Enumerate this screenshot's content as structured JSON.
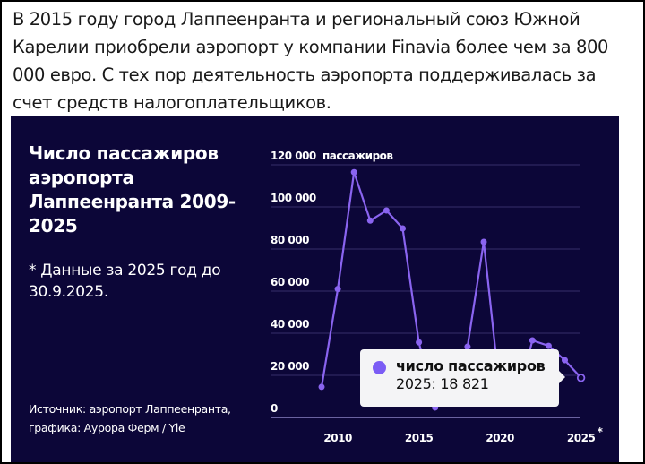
{
  "article": {
    "paragraph": "В 2015 году город Лаппеенранта и региональный союз Южной Карелии приобрели аэропорт у компании Finavia более чем за 800 000 евро. С тех пор деятельность аэропорта поддерживалась за счет средств налогоплательщиков."
  },
  "chart": {
    "title": "Число пассажиров аэропорта Лаппеенранта 2009-2025",
    "note": "* Данные за 2025 год до 30.9.2025.",
    "source_line1": "Источник: аэропорт Лаппеенранта,",
    "source_line2": "графика: Аурора Ферм / Yle",
    "y_unit_label": "пассажиров",
    "x_last_label_marker": "*",
    "tooltip": {
      "series": "число пассажиров",
      "value": "2025: 18 821"
    },
    "colors": {
      "background": "#0c0638",
      "line": "#8a64f0",
      "grid": "#2e2760",
      "axis": "#6a62a0",
      "text": "#ffffff",
      "tooltip_bg": "#f4f4f6"
    }
  },
  "chart_data": {
    "type": "line",
    "title": "Число пассажиров аэропорта Лаппеенранта 2009-2025",
    "subtitle": "* Данные за 2025 год до 30.9.2025.",
    "xlabel": "",
    "ylabel": "пассажиров",
    "x": [
      2009,
      2010,
      2011,
      2012,
      2013,
      2014,
      2015,
      2016,
      2017,
      2018,
      2019,
      2020,
      2021,
      2022,
      2023,
      2024,
      2025
    ],
    "series": [
      {
        "name": "число пассажиров",
        "values": [
          14500,
          61000,
          116500,
          93500,
          98300,
          89800,
          35700,
          4700,
          null,
          33600,
          83400,
          null,
          null,
          36600,
          34000,
          27200,
          18821
        ]
      }
    ],
    "ylim": [
      0,
      120000
    ],
    "yticks": [
      "0",
      "20 000",
      "40 000",
      "60 000",
      "80 000",
      "100 000",
      "120 000"
    ],
    "xticks": [
      "2010",
      "2015",
      "2020",
      "2025"
    ],
    "grid": true,
    "legend": "tooltip",
    "highlighted_point": {
      "x": 2025,
      "value": 18821,
      "label": "2025: 18 821"
    },
    "source": "Источник: аэропорт Лаппеенранта, графика: Аурора Ферм / Yle"
  }
}
